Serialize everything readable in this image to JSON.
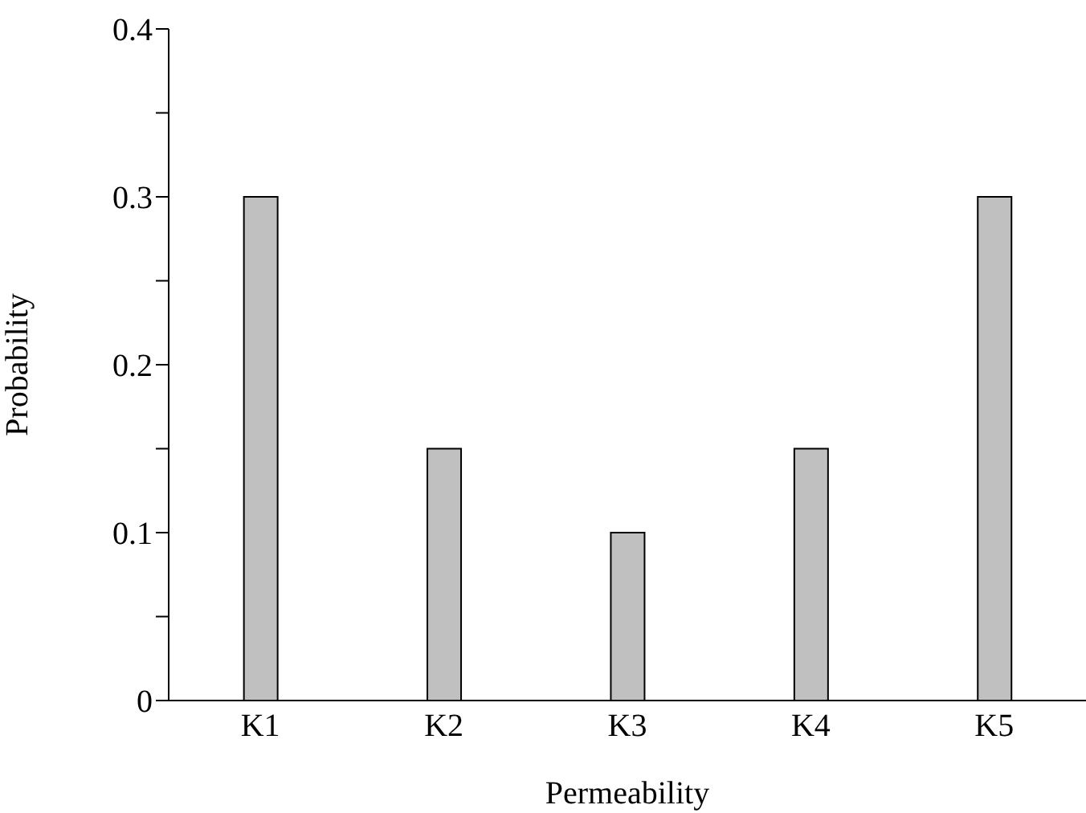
{
  "chart_data": {
    "type": "bar",
    "xlabel": "Permeability",
    "ylabel": "Probability",
    "categories": [
      "K1",
      "K2",
      "K3",
      "K4",
      "K5"
    ],
    "values": [
      0.3,
      0.15,
      0.1,
      0.15,
      0.3
    ],
    "color": "#c0c0c0",
    "ylim": [
      0,
      0.4
    ],
    "yticks": [
      0,
      {
        "value": 0.05,
        "label": null
      },
      0.1,
      {
        "value": 0.15,
        "label": null
      },
      0.2,
      {
        "value": 0.25,
        "label": null
      },
      0.3,
      {
        "value": 0.35,
        "label": null
      },
      0.4
    ],
    "grid": false,
    "legend": false
  }
}
